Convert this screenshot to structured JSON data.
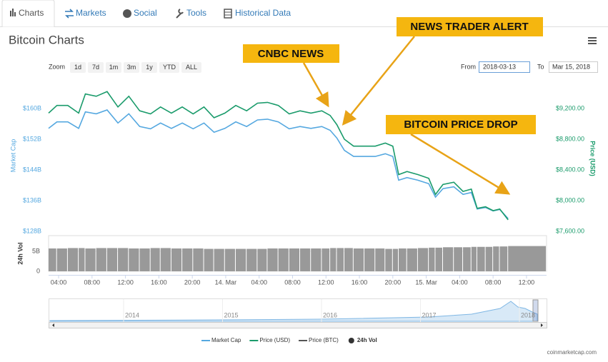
{
  "ui": {
    "tabs": [
      "Charts",
      "Markets",
      "Social",
      "Tools",
      "Historical Data"
    ],
    "zoom_label": "Zoom",
    "zoom_buttons": [
      "1d",
      "7d",
      "1m",
      "3m",
      "1y",
      "YTD",
      "ALL"
    ],
    "from_label": "From",
    "from_value": "2018-03-13",
    "to_label": "To",
    "to_value": "Mar 15, 2018",
    "credit": "coinmarketcap.com",
    "navigator_labels": [
      "2014",
      "2015",
      "2016",
      "2017",
      "2018"
    ]
  },
  "chart_data": {
    "type": "line",
    "title": "Bitcoin Charts",
    "y_label": "Market Cap",
    "y2_label": "Price (USD)",
    "vol_label": "24h Vol",
    "annotations": [
      "NEWS TRADER ALERT",
      "CNBC NEWS",
      "BITCOIN PRICE DROP"
    ],
    "x": [
      2.8,
      3.8,
      5.1,
      6.4,
      7.2,
      8.5,
      9.8,
      11.1,
      12.4,
      13.7,
      15.0,
      16.2,
      17.5,
      18.8,
      20.1,
      21.4,
      22.6,
      23.9,
      25.2,
      26.5,
      27.8,
      29.0,
      30.3,
      31.6,
      32.9,
      34.2,
      35.5,
      36.5,
      37.3,
      38.2,
      39.3,
      40.6,
      41.9,
      43.1,
      44.0,
      44.7,
      45.7,
      47.0,
      48.3,
      49.1,
      50.0,
      51.3,
      52.4,
      53.4,
      54.1,
      55.1,
      56.0,
      56.8,
      57.8
    ],
    "xlim": [
      2.8,
      62.4
    ],
    "xticks": [
      {
        "value": 4,
        "label": "04:00"
      },
      {
        "value": 8,
        "label": "08:00"
      },
      {
        "value": 12,
        "label": "12:00"
      },
      {
        "value": 16,
        "label": "16:00"
      },
      {
        "value": 20,
        "label": "20:00"
      },
      {
        "value": 24,
        "label": "14. Mar"
      },
      {
        "value": 28,
        "label": "04:00"
      },
      {
        "value": 32,
        "label": "08:00"
      },
      {
        "value": 36,
        "label": "12:00"
      },
      {
        "value": 40,
        "label": "16:00"
      },
      {
        "value": 44,
        "label": "20:00"
      },
      {
        "value": 48,
        "label": "15. Mar"
      },
      {
        "value": 52,
        "label": "04:00"
      },
      {
        "value": 56,
        "label": "08:00"
      },
      {
        "value": 60,
        "label": "12:00"
      }
    ],
    "ylim": [
      127.8,
      165.0
    ],
    "yticks": [
      {
        "value": 128,
        "label": "$128B"
      },
      {
        "value": 136,
        "label": "$136B"
      },
      {
        "value": 144,
        "label": "$144B"
      },
      {
        "value": 152,
        "label": "$152B"
      },
      {
        "value": 160,
        "label": "$160B"
      }
    ],
    "y2lim": [
      7591,
      9451
    ],
    "y2ticks": [
      {
        "value": 7600,
        "label": "$7,600.00"
      },
      {
        "value": 8000,
        "label": "$8,000.00"
      },
      {
        "value": 8400,
        "label": "$8,400.00"
      },
      {
        "value": 8800,
        "label": "$8,800.00"
      },
      {
        "value": 9200,
        "label": "$9,200.00"
      }
    ],
    "vollim": [
      0,
      8.9
    ],
    "volticks": [
      0,
      {
        "value": 5,
        "label": "5B"
      }
    ],
    "series": [
      {
        "name": "Market Cap",
        "color": "#55a8e0",
        "axis": "y",
        "values": [
          154.8,
          156.5,
          156.5,
          154.8,
          159.1,
          158.6,
          159.6,
          156.2,
          158.6,
          155.3,
          154.7,
          156.2,
          154.8,
          156.2,
          154.7,
          156.2,
          153.8,
          154.8,
          156.5,
          155.3,
          157.0,
          157.2,
          156.5,
          154.7,
          155.3,
          154.8,
          155.3,
          154.3,
          152.3,
          149.1,
          147.5,
          147.5,
          147.5,
          148.2,
          147.5,
          141.3,
          142.0,
          141.3,
          140.4,
          136.9,
          139.1,
          139.6,
          137.6,
          138.1,
          133.8,
          134.2,
          133.3,
          133.7,
          131.3
        ]
      },
      {
        "name": "Price (USD)",
        "color": "#1a9b6b",
        "axis": "y2",
        "values": [
          9140,
          9240,
          9240,
          9140,
          9390,
          9360,
          9420,
          9220,
          9360,
          9170,
          9130,
          9220,
          9140,
          9220,
          9130,
          9220,
          9080,
          9140,
          9240,
          9170,
          9270,
          9280,
          9240,
          9130,
          9170,
          9140,
          9170,
          9110,
          8990,
          8800,
          8710,
          8710,
          8710,
          8750,
          8710,
          8340,
          8380,
          8340,
          8290,
          8080,
          8210,
          8240,
          8120,
          8150,
          7900,
          7920,
          7870,
          7890,
          7750
        ]
      },
      {
        "name": "Price (BTC)",
        "color": "#555555",
        "axis": "y",
        "values": [
          null,
          null,
          null,
          null,
          null,
          null,
          null,
          null,
          null,
          null,
          null,
          null,
          null,
          null,
          null,
          null,
          null,
          null,
          null,
          null,
          null,
          null,
          null,
          null,
          null,
          null,
          null,
          null,
          null,
          null,
          null,
          null,
          null,
          null,
          null,
          null,
          null,
          null,
          null,
          null,
          null,
          null,
          null,
          null,
          null,
          null,
          null,
          null,
          null
        ]
      },
      {
        "name": "24h Vol",
        "color": "#999999",
        "axis": "vol",
        "type": "column",
        "values": [
          5.7,
          5.7,
          5.8,
          5.8,
          5.7,
          5.8,
          5.8,
          5.8,
          5.7,
          5.7,
          5.8,
          5.8,
          5.7,
          5.7,
          5.7,
          5.6,
          5.6,
          5.6,
          5.6,
          5.6,
          5.6,
          5.7,
          5.7,
          5.7,
          5.7,
          5.7,
          5.7,
          5.8,
          5.8,
          5.8,
          5.7,
          5.7,
          5.7,
          5.6,
          5.6,
          5.7,
          5.7,
          5.8,
          5.9,
          5.9,
          6.0,
          6.0,
          6.0,
          6.1,
          6.1,
          6.1,
          6.2,
          6.2,
          6.3
        ]
      }
    ]
  }
}
